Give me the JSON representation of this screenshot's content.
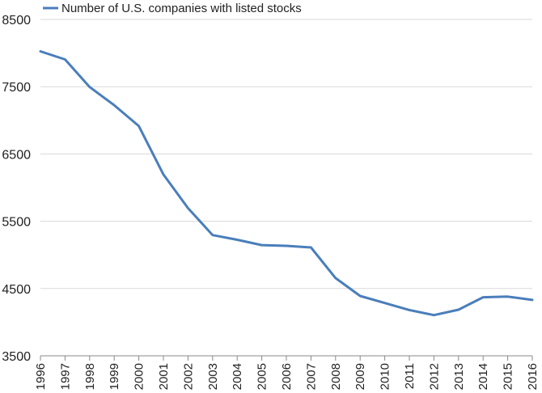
{
  "chart_data": {
    "type": "line",
    "title": "",
    "xlabel": "",
    "ylabel": "",
    "categories": [
      "1996",
      "1997",
      "1998",
      "1999",
      "2000",
      "2001",
      "2002",
      "2003",
      "2004",
      "2005",
      "2006",
      "2007",
      "2008",
      "2009",
      "2010",
      "2011",
      "2012",
      "2013",
      "2014",
      "2015",
      "2016"
    ],
    "series": [
      {
        "name": "Number of U.S. companies with listed stocks",
        "color": "#4a7ebb",
        "values": [
          8025,
          7905,
          7495,
          7225,
          6915,
          6195,
          5695,
          5295,
          5225,
          5145,
          5135,
          5110,
          4655,
          4390,
          4285,
          4180,
          4105,
          4185,
          4370,
          4380,
          4330
        ]
      }
    ],
    "ylim": [
      3500,
      8500
    ],
    "yticks": [
      3500,
      4500,
      5500,
      6500,
      7500,
      8500
    ],
    "grid": "horizontal",
    "legend_position": "top-left"
  }
}
